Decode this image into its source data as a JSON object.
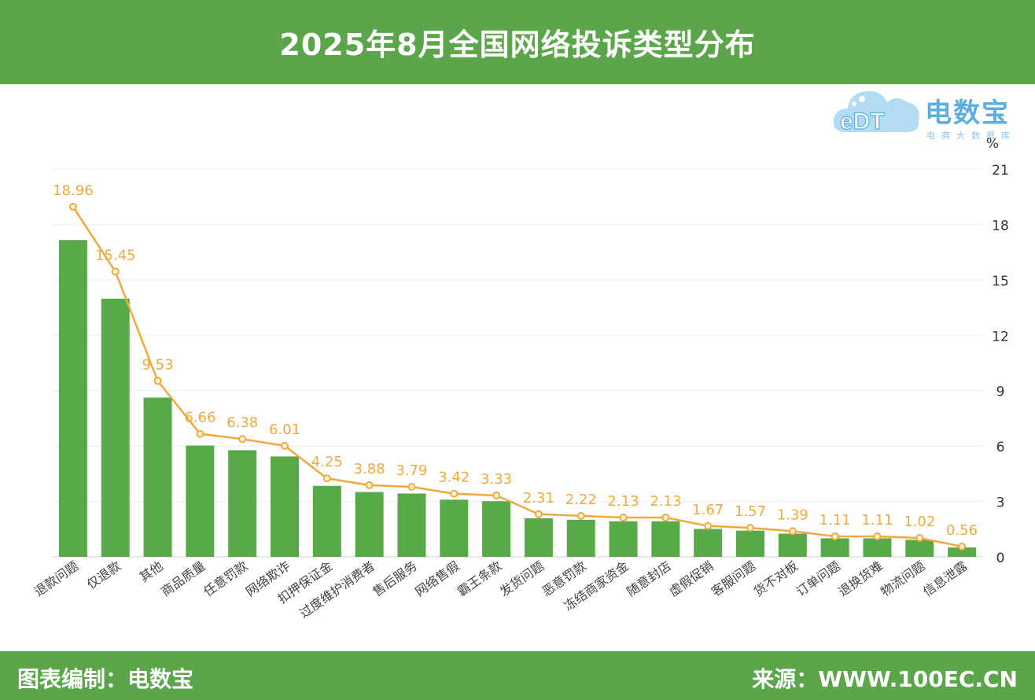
{
  "header": {
    "title": "2025年8月全国网络投诉类型分布"
  },
  "footer": {
    "left": "图表编制：电数宝",
    "right": "来源：WWW.100EC.CN"
  },
  "logo": {
    "mark": "eDT",
    "name": "电数宝",
    "sub": "电商大数据库"
  },
  "colors": {
    "bar": "#58a947",
    "line": "#f2a93b",
    "label": "#f2a93b",
    "header": "#5ba54a"
  },
  "chart_data": {
    "type": "bar",
    "title": "2025年8月全国网络投诉类型分布",
    "ylabel": "%",
    "ylim": [
      0,
      21
    ],
    "yticks": [
      0,
      3,
      6,
      9,
      12,
      15,
      18,
      21
    ],
    "grid": true,
    "categories": [
      "退款问题",
      "仅退款",
      "其他",
      "商品质量",
      "任意罚款",
      "网络欺诈",
      "扣押保证金",
      "过度维护消费者",
      "售后服务",
      "网络售假",
      "霸王条款",
      "发货问题",
      "恶意罚款",
      "冻结商家资金",
      "随意封店",
      "虚假促销",
      "客服问题",
      "货不对板",
      "订单问题",
      "退换货难",
      "物流问题",
      "信息泄露"
    ],
    "series": [
      {
        "values": [
          18.96,
          15.45,
          9.53,
          6.66,
          6.38,
          6.01,
          4.25,
          3.88,
          3.79,
          3.42,
          3.33,
          2.31,
          2.22,
          2.13,
          2.13,
          1.67,
          1.57,
          1.39,
          1.11,
          1.11,
          1.02,
          0.56
        ]
      }
    ]
  }
}
